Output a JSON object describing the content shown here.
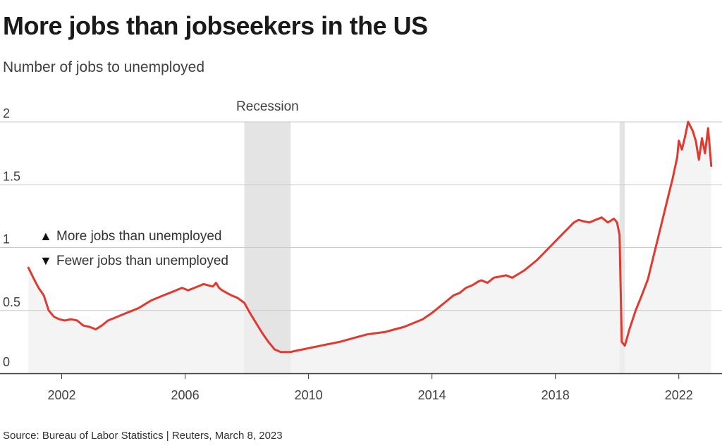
{
  "header": {
    "title": "More jobs than jobseekers in the US",
    "subtitle": "Number of jobs to unemployed"
  },
  "footer": {
    "source": "Source: Bureau of Labor Statistics | Reuters, March 8, 2023"
  },
  "colors": {
    "line": "#e03a30",
    "area": "#f0f0f0",
    "recession": "#e4e4e4",
    "grid": "#c8c8c8",
    "axis": "#333333"
  },
  "chart_data": {
    "type": "area",
    "xlim": [
      2000.0,
      2023.4
    ],
    "ylim": [
      0,
      2
    ],
    "y_ticks": [
      {
        "value": 0,
        "label": "0"
      },
      {
        "value": 0.5,
        "label": "0.5"
      },
      {
        "value": 1,
        "label": "1"
      },
      {
        "value": 1.5,
        "label": "1.5"
      },
      {
        "value": 2,
        "label": "2"
      }
    ],
    "x_ticks": [
      {
        "value": 2002,
        "label": "2002"
      },
      {
        "value": 2006,
        "label": "2006"
      },
      {
        "value": 2010,
        "label": "2010"
      },
      {
        "value": 2014,
        "label": "2014"
      },
      {
        "value": 2018,
        "label": "2018"
      },
      {
        "value": 2022,
        "label": "2022"
      }
    ],
    "grid": true,
    "recessions": [
      {
        "start": 2007.92,
        "end": 2009.42,
        "label": "Recession"
      },
      {
        "start": 2020.08,
        "end": 2020.25,
        "label": ""
      }
    ],
    "legend": {
      "placement": "left",
      "items": [
        {
          "symbol": "▲",
          "text": "More jobs than unemployed"
        },
        {
          "symbol": "▼",
          "text": "Fewer jobs than unemployed"
        }
      ]
    },
    "series": [
      {
        "x": [
          2000.92,
          2001.1,
          2001.25,
          2001.42,
          2001.58,
          2001.75,
          2001.92,
          2002.1,
          2002.3,
          2002.5,
          2002.7,
          2002.9,
          2003.1,
          2003.3,
          2003.5,
          2003.7,
          2003.9,
          2004.1,
          2004.3,
          2004.5,
          2004.7,
          2004.9,
          2005.1,
          2005.3,
          2005.5,
          2005.7,
          2005.9,
          2006.1,
          2006.3,
          2006.5,
          2006.6,
          2006.75,
          2006.9,
          2007.0,
          2007.1,
          2007.2,
          2007.35,
          2007.5,
          2007.7,
          2007.92,
          2008.1,
          2008.3,
          2008.5,
          2008.7,
          2008.9,
          2009.1,
          2009.3,
          2009.42,
          2009.6,
          2009.8,
          2010.0,
          2010.2,
          2010.4,
          2010.6,
          2010.8,
          2011.0,
          2011.3,
          2011.6,
          2011.9,
          2012.2,
          2012.5,
          2012.8,
          2013.1,
          2013.4,
          2013.7,
          2014.0,
          2014.3,
          2014.5,
          2014.7,
          2014.9,
          2015.1,
          2015.3,
          2015.5,
          2015.6,
          2015.8,
          2016.0,
          2016.2,
          2016.4,
          2016.6,
          2016.8,
          2017.0,
          2017.2,
          2017.4,
          2017.6,
          2017.8,
          2018.0,
          2018.2,
          2018.4,
          2018.6,
          2018.75,
          2018.9,
          2019.1,
          2019.3,
          2019.5,
          2019.7,
          2019.9,
          2020.0,
          2020.08,
          2020.15,
          2020.25,
          2020.4,
          2020.6,
          2020.8,
          2021.0,
          2021.2,
          2021.4,
          2021.6,
          2021.8,
          2021.95,
          2022.0,
          2022.1,
          2022.2,
          2022.3,
          2022.45,
          2022.55,
          2022.65,
          2022.75,
          2022.85,
          2022.95,
          2023.05
        ],
        "values": [
          0.84,
          0.75,
          0.68,
          0.62,
          0.5,
          0.45,
          0.43,
          0.42,
          0.43,
          0.42,
          0.38,
          0.37,
          0.35,
          0.38,
          0.42,
          0.44,
          0.46,
          0.48,
          0.5,
          0.52,
          0.55,
          0.58,
          0.6,
          0.62,
          0.64,
          0.66,
          0.68,
          0.66,
          0.68,
          0.7,
          0.71,
          0.7,
          0.69,
          0.72,
          0.68,
          0.66,
          0.64,
          0.62,
          0.6,
          0.56,
          0.48,
          0.4,
          0.32,
          0.25,
          0.19,
          0.17,
          0.17,
          0.17,
          0.18,
          0.19,
          0.2,
          0.21,
          0.22,
          0.23,
          0.24,
          0.25,
          0.27,
          0.29,
          0.31,
          0.32,
          0.33,
          0.35,
          0.37,
          0.4,
          0.43,
          0.48,
          0.54,
          0.58,
          0.62,
          0.64,
          0.68,
          0.7,
          0.73,
          0.74,
          0.72,
          0.76,
          0.77,
          0.78,
          0.76,
          0.79,
          0.82,
          0.86,
          0.9,
          0.95,
          1.0,
          1.05,
          1.1,
          1.15,
          1.2,
          1.22,
          1.21,
          1.2,
          1.22,
          1.24,
          1.2,
          1.23,
          1.2,
          1.1,
          0.25,
          0.22,
          0.35,
          0.5,
          0.62,
          0.75,
          0.95,
          1.15,
          1.35,
          1.55,
          1.72,
          1.85,
          1.78,
          1.88,
          2.0,
          1.93,
          1.85,
          1.7,
          1.87,
          1.75,
          1.95,
          1.65
        ]
      }
    ]
  }
}
